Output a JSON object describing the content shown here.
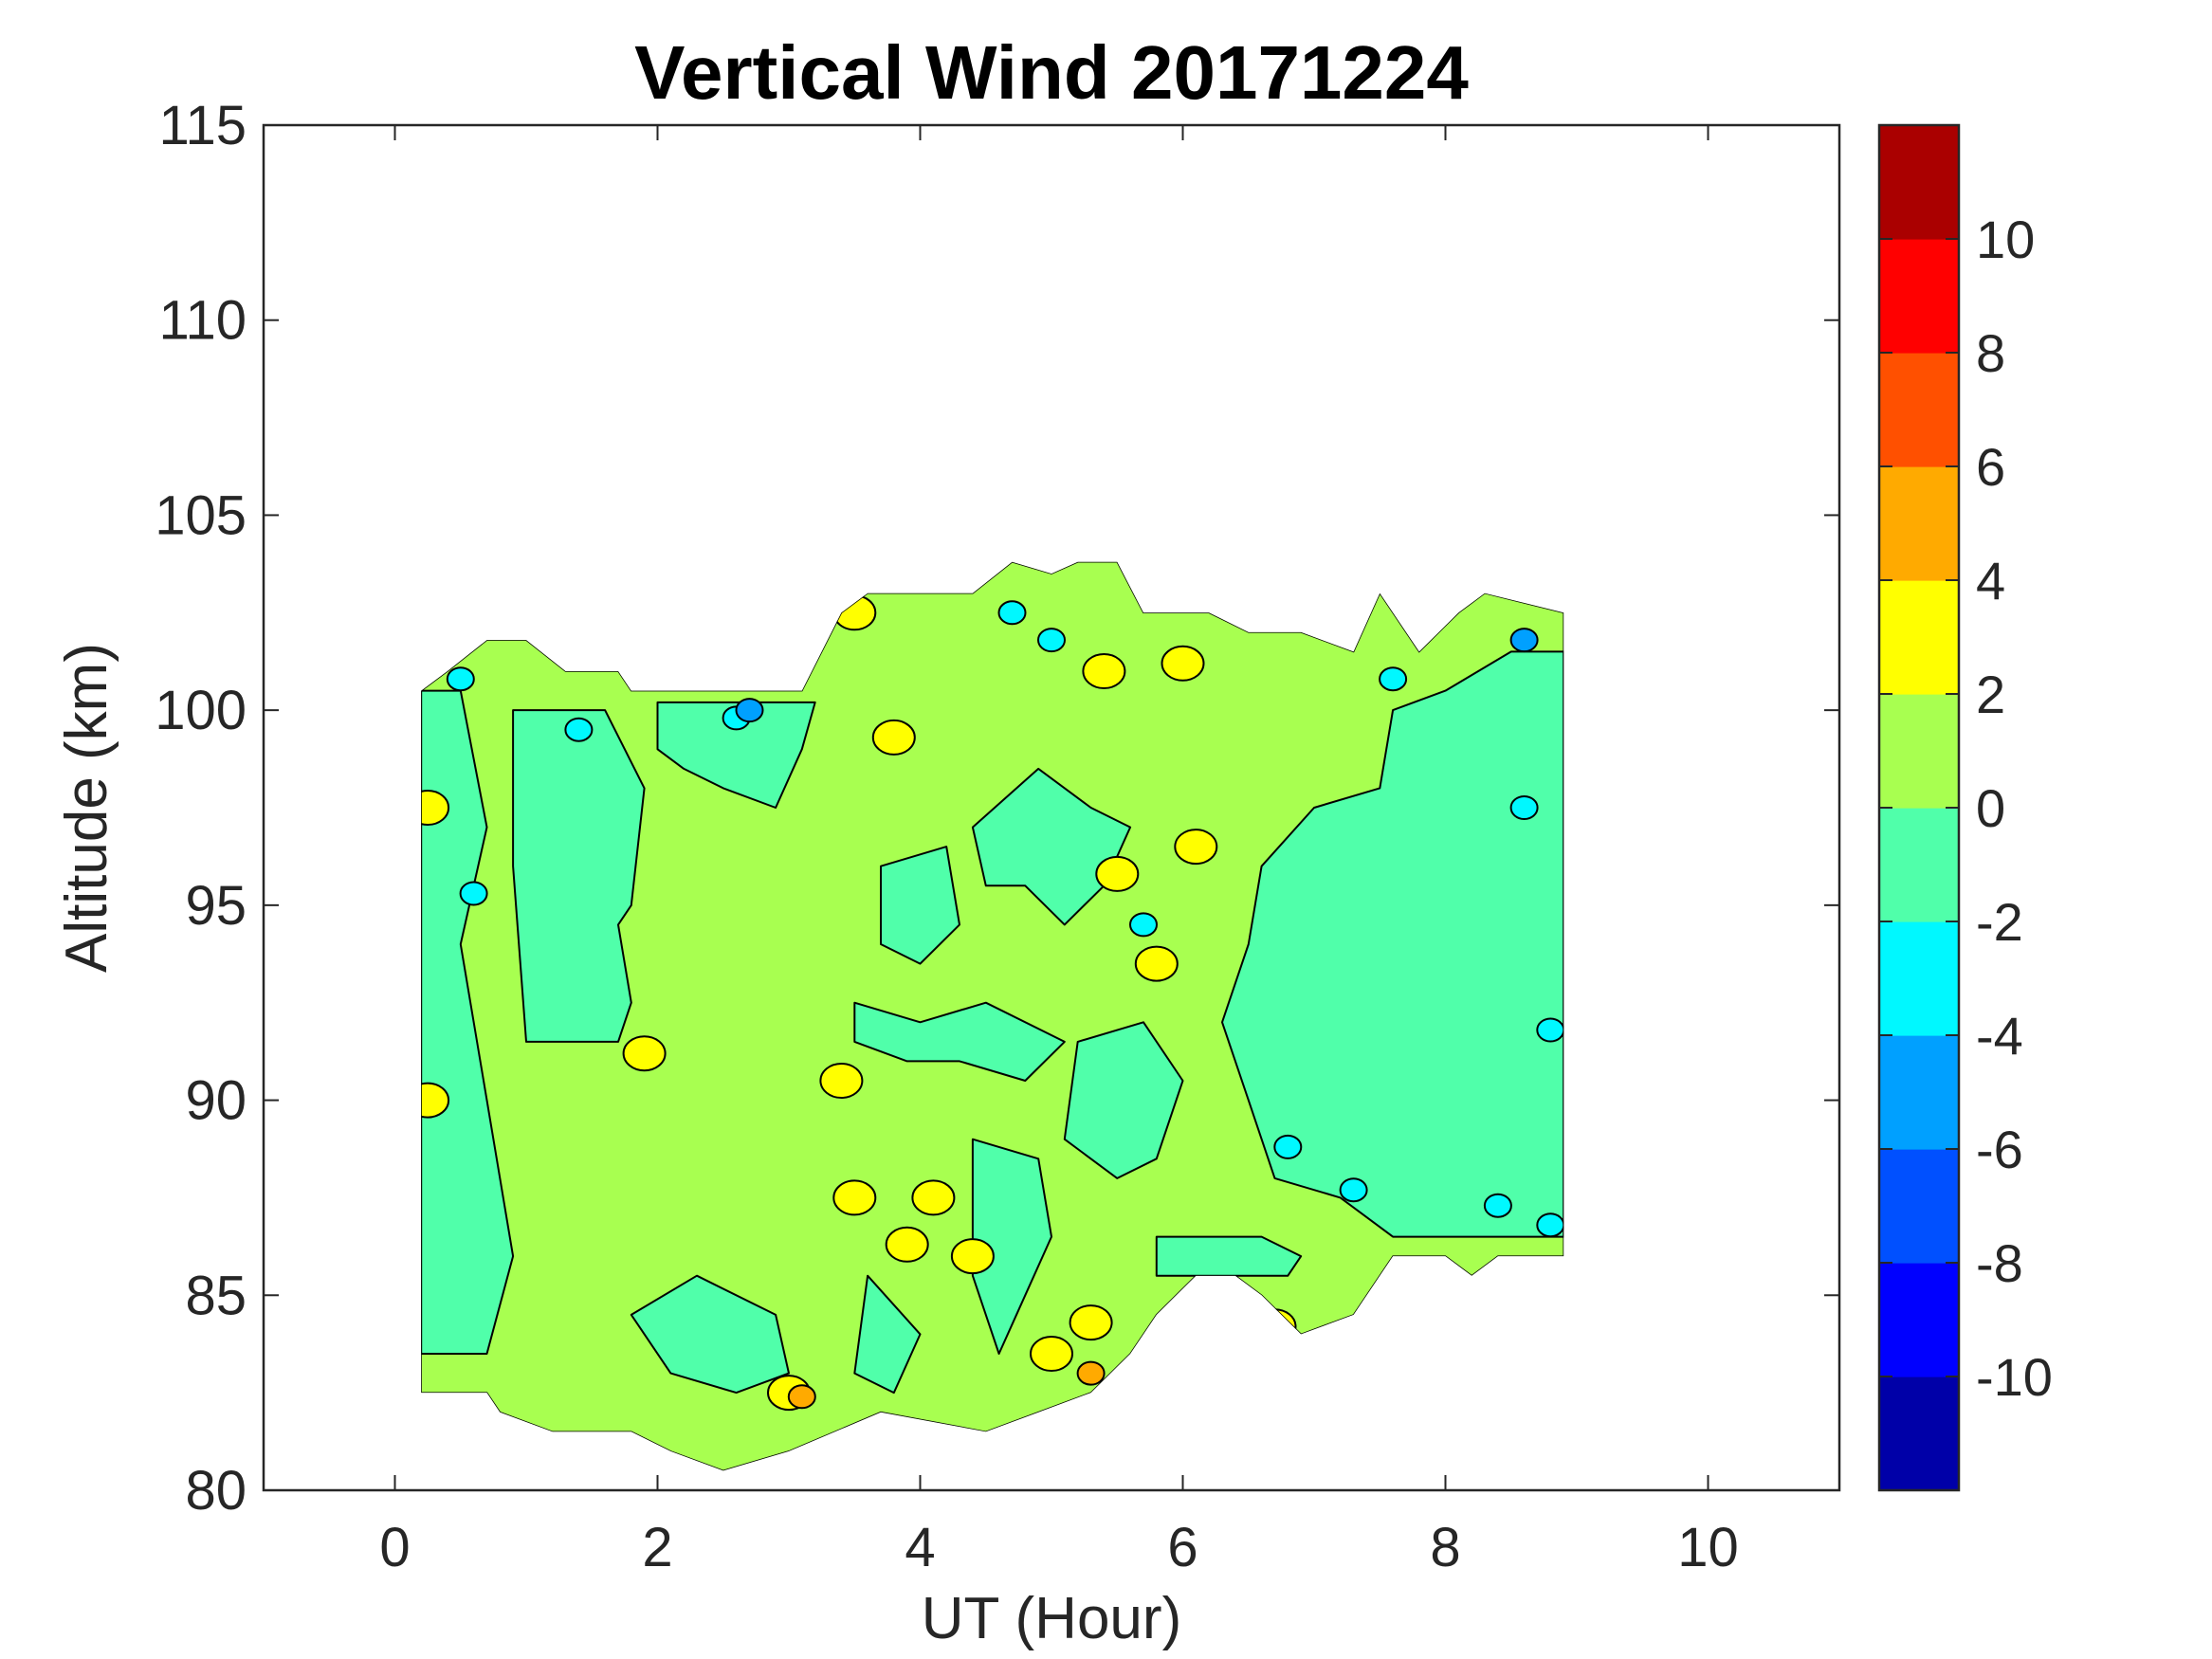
{
  "chart_data": {
    "type": "heatmap",
    "subtype": "filled-contour",
    "title": "Vertical Wind 20171224",
    "xlabel": "UT (Hour)",
    "ylabel": "Altitude (km)",
    "xlim": [
      -1,
      11
    ],
    "ylim": [
      80,
      115
    ],
    "xticks": [
      0,
      2,
      4,
      6,
      8,
      10
    ],
    "yticks": [
      80,
      85,
      90,
      95,
      100,
      105,
      110,
      115
    ],
    "grid": false,
    "colorbar": {
      "placement": "right",
      "range": [
        -12,
        12
      ],
      "ticks": [
        -10,
        -8,
        -6,
        -4,
        -2,
        0,
        2,
        4,
        6,
        8,
        10
      ],
      "levels": [
        -12,
        -10,
        -8,
        -6,
        -4,
        -2,
        0,
        2,
        4,
        6,
        8,
        10,
        12
      ],
      "colors": [
        "#0000a8",
        "#0000ff",
        "#0050ff",
        "#00a0ff",
        "#00f8ff",
        "#50ffaa",
        "#a8ff50",
        "#ffff00",
        "#ffaa00",
        "#ff5000",
        "#ff0000",
        "#aa0000"
      ]
    },
    "data_coverage": {
      "x_range": [
        0.2,
        8.9
      ],
      "top_boundary": [
        [
          0.2,
          100.5
        ],
        [
          0.4,
          101.0
        ],
        [
          0.7,
          101.8
        ],
        [
          1.0,
          101.8
        ],
        [
          1.3,
          101.0
        ],
        [
          1.7,
          101.0
        ],
        [
          1.8,
          100.5
        ],
        [
          3.1,
          100.5
        ],
        [
          3.4,
          102.5
        ],
        [
          3.6,
          103.0
        ],
        [
          4.4,
          103.0
        ],
        [
          4.7,
          103.8
        ],
        [
          5.0,
          103.5
        ],
        [
          5.2,
          103.8
        ],
        [
          5.5,
          103.8
        ],
        [
          5.7,
          102.5
        ],
        [
          6.2,
          102.5
        ],
        [
          6.5,
          102.0
        ],
        [
          6.9,
          102.0
        ],
        [
          7.3,
          101.5
        ],
        [
          7.5,
          103.0
        ],
        [
          7.8,
          101.5
        ],
        [
          8.1,
          102.5
        ],
        [
          8.3,
          103.0
        ],
        [
          8.9,
          102.5
        ]
      ],
      "bottom_boundary": [
        [
          8.9,
          86.0
        ],
        [
          8.4,
          86.0
        ],
        [
          8.2,
          85.5
        ],
        [
          8.0,
          86.0
        ],
        [
          7.6,
          86.0
        ],
        [
          7.3,
          84.5
        ],
        [
          6.9,
          84.0
        ],
        [
          6.6,
          85.0
        ],
        [
          6.4,
          85.5
        ],
        [
          6.1,
          85.5
        ],
        [
          5.8,
          84.5
        ],
        [
          5.6,
          83.5
        ],
        [
          5.3,
          82.5
        ],
        [
          4.9,
          82.0
        ],
        [
          4.5,
          81.5
        ],
        [
          3.7,
          82.0
        ],
        [
          3.0,
          81.0
        ],
        [
          2.5,
          80.5
        ],
        [
          2.1,
          81.0
        ],
        [
          1.8,
          81.5
        ],
        [
          1.4,
          81.5
        ],
        [
          1.2,
          81.5
        ],
        [
          0.8,
          82.0
        ],
        [
          0.7,
          82.5
        ],
        [
          0.2,
          82.5
        ]
      ],
      "background_level_range": [
        0,
        2
      ],
      "negative_bands": [
        {
          "range": [
            -2,
            0
          ],
          "path": [
            [
              0.2,
              100.5
            ],
            [
              0.5,
              100.5
            ],
            [
              0.7,
              97.0
            ],
            [
              0.5,
              94.0
            ],
            [
              0.7,
              90.0
            ],
            [
              0.9,
              86.0
            ],
            [
              0.7,
              83.5
            ],
            [
              0.2,
              83.5
            ]
          ]
        },
        {
          "range": [
            -2,
            0
          ],
          "path": [
            [
              0.9,
              100.0
            ],
            [
              1.6,
              100.0
            ],
            [
              1.9,
              98.0
            ],
            [
              1.8,
              95.0
            ],
            [
              1.7,
              94.5
            ],
            [
              1.8,
              92.5
            ],
            [
              1.7,
              91.5
            ],
            [
              1.0,
              91.5
            ],
            [
              0.9,
              96.0
            ]
          ]
        },
        {
          "range": [
            -2,
            0
          ],
          "path": [
            [
              2.0,
              100.2
            ],
            [
              3.2,
              100.2
            ],
            [
              3.1,
              99.0
            ],
            [
              2.9,
              97.5
            ],
            [
              2.5,
              98.0
            ],
            [
              2.2,
              98.5
            ],
            [
              2.0,
              99.0
            ]
          ]
        },
        {
          "range": [
            -2,
            0
          ],
          "path": [
            [
              3.7,
              96.0
            ],
            [
              4.2,
              96.5
            ],
            [
              4.3,
              94.5
            ],
            [
              4.0,
              93.5
            ],
            [
              3.7,
              94.0
            ]
          ]
        },
        {
          "range": [
            -2,
            0
          ],
          "path": [
            [
              3.5,
              92.5
            ],
            [
              4.0,
              92.0
            ],
            [
              4.5,
              92.5
            ],
            [
              5.1,
              91.5
            ],
            [
              4.8,
              90.5
            ],
            [
              4.3,
              91.0
            ],
            [
              3.9,
              91.0
            ],
            [
              3.5,
              91.5
            ]
          ]
        },
        {
          "range": [
            -2,
            0
          ],
          "path": [
            [
              4.4,
              97.0
            ],
            [
              4.9,
              98.5
            ],
            [
              5.3,
              97.5
            ],
            [
              5.6,
              97.0
            ],
            [
              5.4,
              95.5
            ],
            [
              5.1,
              94.5
            ],
            [
              4.8,
              95.5
            ],
            [
              4.5,
              95.5
            ]
          ]
        },
        {
          "range": [
            -2,
            0
          ],
          "path": [
            [
              4.4,
              89.0
            ],
            [
              4.9,
              88.5
            ],
            [
              5.0,
              86.5
            ],
            [
              4.8,
              85.0
            ],
            [
              4.6,
              83.5
            ],
            [
              4.4,
              85.5
            ]
          ]
        },
        {
          "range": [
            -2,
            0
          ],
          "path": [
            [
              1.8,
              84.5
            ],
            [
              2.3,
              85.5
            ],
            [
              2.9,
              84.5
            ],
            [
              3.0,
              83.0
            ],
            [
              2.6,
              82.5
            ],
            [
              2.1,
              83.0
            ]
          ]
        },
        {
          "range": [
            -2,
            0
          ],
          "path": [
            [
              3.6,
              85.5
            ],
            [
              4.0,
              84.0
            ],
            [
              3.8,
              82.5
            ],
            [
              3.5,
              83.0
            ]
          ]
        },
        {
          "range": [
            -2,
            0
          ],
          "path": [
            [
              5.2,
              91.5
            ],
            [
              5.7,
              92.0
            ],
            [
              6.0,
              90.5
            ],
            [
              5.8,
              88.5
            ],
            [
              5.5,
              88.0
            ],
            [
              5.1,
              89.0
            ]
          ]
        },
        {
          "range": [
            -2,
            0
          ],
          "path": [
            [
              5.8,
              86.5
            ],
            [
              6.6,
              86.5
            ],
            [
              6.9,
              86.0
            ],
            [
              6.8,
              85.5
            ],
            [
              6.1,
              85.5
            ],
            [
              5.8,
              85.5
            ]
          ]
        },
        {
          "range": [
            -2,
            0
          ],
          "path": [
            [
              6.6,
              96.0
            ],
            [
              7.0,
              97.5
            ],
            [
              7.5,
              98.0
            ],
            [
              7.6,
              100.0
            ],
            [
              8.0,
              100.5
            ],
            [
              8.5,
              101.5
            ],
            [
              8.9,
              101.5
            ],
            [
              8.9,
              86.5
            ],
            [
              8.4,
              86.5
            ],
            [
              7.6,
              86.5
            ],
            [
              7.2,
              87.5
            ],
            [
              6.7,
              88.0
            ],
            [
              6.5,
              90.0
            ],
            [
              6.3,
              92.0
            ],
            [
              6.5,
              94.0
            ]
          ]
        }
      ],
      "low_spots": [
        {
          "range": [
            -4,
            -2
          ],
          "center": [
            0.5,
            100.8
          ]
        },
        {
          "range": [
            -4,
            -2
          ],
          "center": [
            0.6,
            95.3
          ]
        },
        {
          "range": [
            -4,
            -2
          ],
          "center": [
            1.4,
            99.5
          ]
        },
        {
          "range": [
            -4,
            -2
          ],
          "center": [
            2.6,
            99.8
          ]
        },
        {
          "range": [
            -4,
            -2
          ],
          "center": [
            4.7,
            102.5
          ]
        },
        {
          "range": [
            -4,
            -2
          ],
          "center": [
            5.0,
            101.8
          ]
        },
        {
          "range": [
            -4,
            -2
          ],
          "center": [
            5.7,
            94.5
          ]
        },
        {
          "range": [
            -4,
            -2
          ],
          "center": [
            6.8,
            88.8
          ]
        },
        {
          "range": [
            -4,
            -2
          ],
          "center": [
            7.3,
            87.7
          ]
        },
        {
          "range": [
            -4,
            -2
          ],
          "center": [
            7.6,
            100.8
          ]
        },
        {
          "range": [
            -4,
            -2
          ],
          "center": [
            8.4,
            87.3
          ]
        },
        {
          "range": [
            -4,
            -2
          ],
          "center": [
            8.6,
            97.5
          ]
        },
        {
          "range": [
            -4,
            -2
          ],
          "center": [
            8.8,
            91.8
          ]
        },
        {
          "range": [
            -4,
            -2
          ],
          "center": [
            8.8,
            86.8
          ]
        },
        {
          "range": [
            -6,
            -4
          ],
          "center": [
            2.7,
            100.0
          ]
        },
        {
          "range": [
            -6,
            -4
          ],
          "center": [
            8.6,
            101.8
          ]
        }
      ],
      "high_spots": [
        {
          "range": [
            2,
            4
          ],
          "center": [
            1.9,
            91.2
          ]
        },
        {
          "range": [
            2,
            4
          ],
          "center": [
            3.5,
            87.5
          ]
        },
        {
          "range": [
            2,
            4
          ],
          "center": [
            3.8,
            99.3
          ]
        },
        {
          "range": [
            2,
            4
          ],
          "center": [
            5.4,
            101.0
          ]
        },
        {
          "range": [
            2,
            4
          ],
          "center": [
            4.4,
            86.0
          ]
        },
        {
          "range": [
            2,
            4
          ],
          "center": [
            5.3,
            84.3
          ]
        },
        {
          "range": [
            2,
            4
          ],
          "center": [
            4.1,
            87.5
          ]
        },
        {
          "range": [
            2,
            4
          ],
          "center": [
            6.0,
            101.2
          ]
        },
        {
          "range": [
            2,
            4
          ],
          "center": [
            6.1,
            96.5
          ]
        },
        {
          "range": [
            2,
            4
          ],
          "center": [
            5.0,
            83.5
          ]
        },
        {
          "range": [
            2,
            4
          ],
          "center": [
            3.0,
            82.5
          ]
        },
        {
          "range": [
            2,
            4
          ],
          "center": [
            0.25,
            97.5
          ]
        },
        {
          "range": [
            2,
            4
          ],
          "center": [
            0.25,
            90.0
          ]
        },
        {
          "range": [
            2,
            4
          ],
          "center": [
            5.5,
            95.8
          ]
        },
        {
          "range": [
            2,
            4
          ],
          "center": [
            5.8,
            93.5
          ]
        },
        {
          "range": [
            2,
            4
          ],
          "center": [
            3.9,
            86.3
          ]
        },
        {
          "range": [
            2,
            4
          ],
          "center": [
            3.4,
            90.5
          ]
        },
        {
          "range": [
            2,
            4
          ],
          "center": [
            6.7,
            84.2
          ]
        },
        {
          "range": [
            2,
            4
          ],
          "center": [
            3.5,
            102.5
          ]
        },
        {
          "range": [
            4,
            6
          ],
          "center": [
            3.1,
            82.4
          ]
        },
        {
          "range": [
            4,
            6
          ],
          "center": [
            5.3,
            83.0
          ]
        }
      ]
    }
  }
}
